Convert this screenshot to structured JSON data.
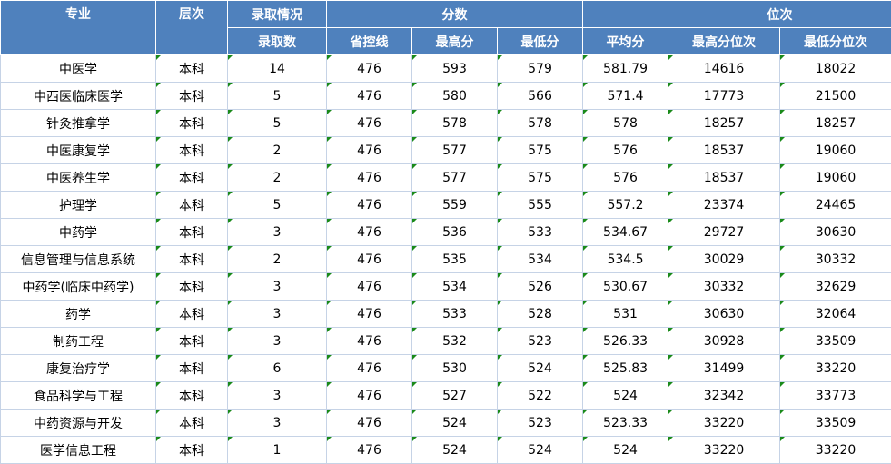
{
  "headers": {
    "major": "专业",
    "level": "层次",
    "admission": "录取情况",
    "scores": "分数",
    "ranks": "位次",
    "admit_count": "录取数",
    "province_line": "省控线",
    "max_score": "最高分",
    "min_score": "最低分",
    "avg_score": "平均分",
    "max_rank": "最高分位次",
    "min_rank": "最低分位次"
  },
  "rows": [
    {
      "major": "中医学",
      "level": "本科",
      "count": "14",
      "line": "476",
      "max": "593",
      "min": "579",
      "avg": "581.79",
      "max_rank": "14616",
      "min_rank": "18022"
    },
    {
      "major": "中西医临床医学",
      "level": "本科",
      "count": "5",
      "line": "476",
      "max": "580",
      "min": "566",
      "avg": "571.4",
      "max_rank": "17773",
      "min_rank": "21500"
    },
    {
      "major": "针灸推拿学",
      "level": "本科",
      "count": "5",
      "line": "476",
      "max": "578",
      "min": "578",
      "avg": "578",
      "max_rank": "18257",
      "min_rank": "18257"
    },
    {
      "major": "中医康复学",
      "level": "本科",
      "count": "2",
      "line": "476",
      "max": "577",
      "min": "575",
      "avg": "576",
      "max_rank": "18537",
      "min_rank": "19060"
    },
    {
      "major": "中医养生学",
      "level": "本科",
      "count": "2",
      "line": "476",
      "max": "577",
      "min": "575",
      "avg": "576",
      "max_rank": "18537",
      "min_rank": "19060"
    },
    {
      "major": "护理学",
      "level": "本科",
      "count": "5",
      "line": "476",
      "max": "559",
      "min": "555",
      "avg": "557.2",
      "max_rank": "23374",
      "min_rank": "24465"
    },
    {
      "major": "中药学",
      "level": "本科",
      "count": "3",
      "line": "476",
      "max": "536",
      "min": "533",
      "avg": "534.67",
      "max_rank": "29727",
      "min_rank": "30630"
    },
    {
      "major": "信息管理与信息系统",
      "level": "本科",
      "count": "2",
      "line": "476",
      "max": "535",
      "min": "534",
      "avg": "534.5",
      "max_rank": "30029",
      "min_rank": "30332"
    },
    {
      "major": "中药学(临床中药学)",
      "level": "本科",
      "count": "3",
      "line": "476",
      "max": "534",
      "min": "526",
      "avg": "530.67",
      "max_rank": "30332",
      "min_rank": "32629"
    },
    {
      "major": "药学",
      "level": "本科",
      "count": "3",
      "line": "476",
      "max": "533",
      "min": "528",
      "avg": "531",
      "max_rank": "30630",
      "min_rank": "32064"
    },
    {
      "major": "制药工程",
      "level": "本科",
      "count": "3",
      "line": "476",
      "max": "532",
      "min": "523",
      "avg": "526.33",
      "max_rank": "30928",
      "min_rank": "33509"
    },
    {
      "major": "康复治疗学",
      "level": "本科",
      "count": "6",
      "line": "476",
      "max": "530",
      "min": "524",
      "avg": "525.83",
      "max_rank": "31499",
      "min_rank": "33220"
    },
    {
      "major": "食品科学与工程",
      "level": "本科",
      "count": "3",
      "line": "476",
      "max": "527",
      "min": "522",
      "avg": "524",
      "max_rank": "32342",
      "min_rank": "33773"
    },
    {
      "major": "中药资源与开发",
      "level": "本科",
      "count": "3",
      "line": "476",
      "max": "524",
      "min": "523",
      "avg": "523.33",
      "max_rank": "33220",
      "min_rank": "33509"
    },
    {
      "major": "医学信息工程",
      "level": "本科",
      "count": "1",
      "line": "476",
      "max": "524",
      "min": "524",
      "avg": "524",
      "max_rank": "33220",
      "min_rank": "33220"
    }
  ]
}
